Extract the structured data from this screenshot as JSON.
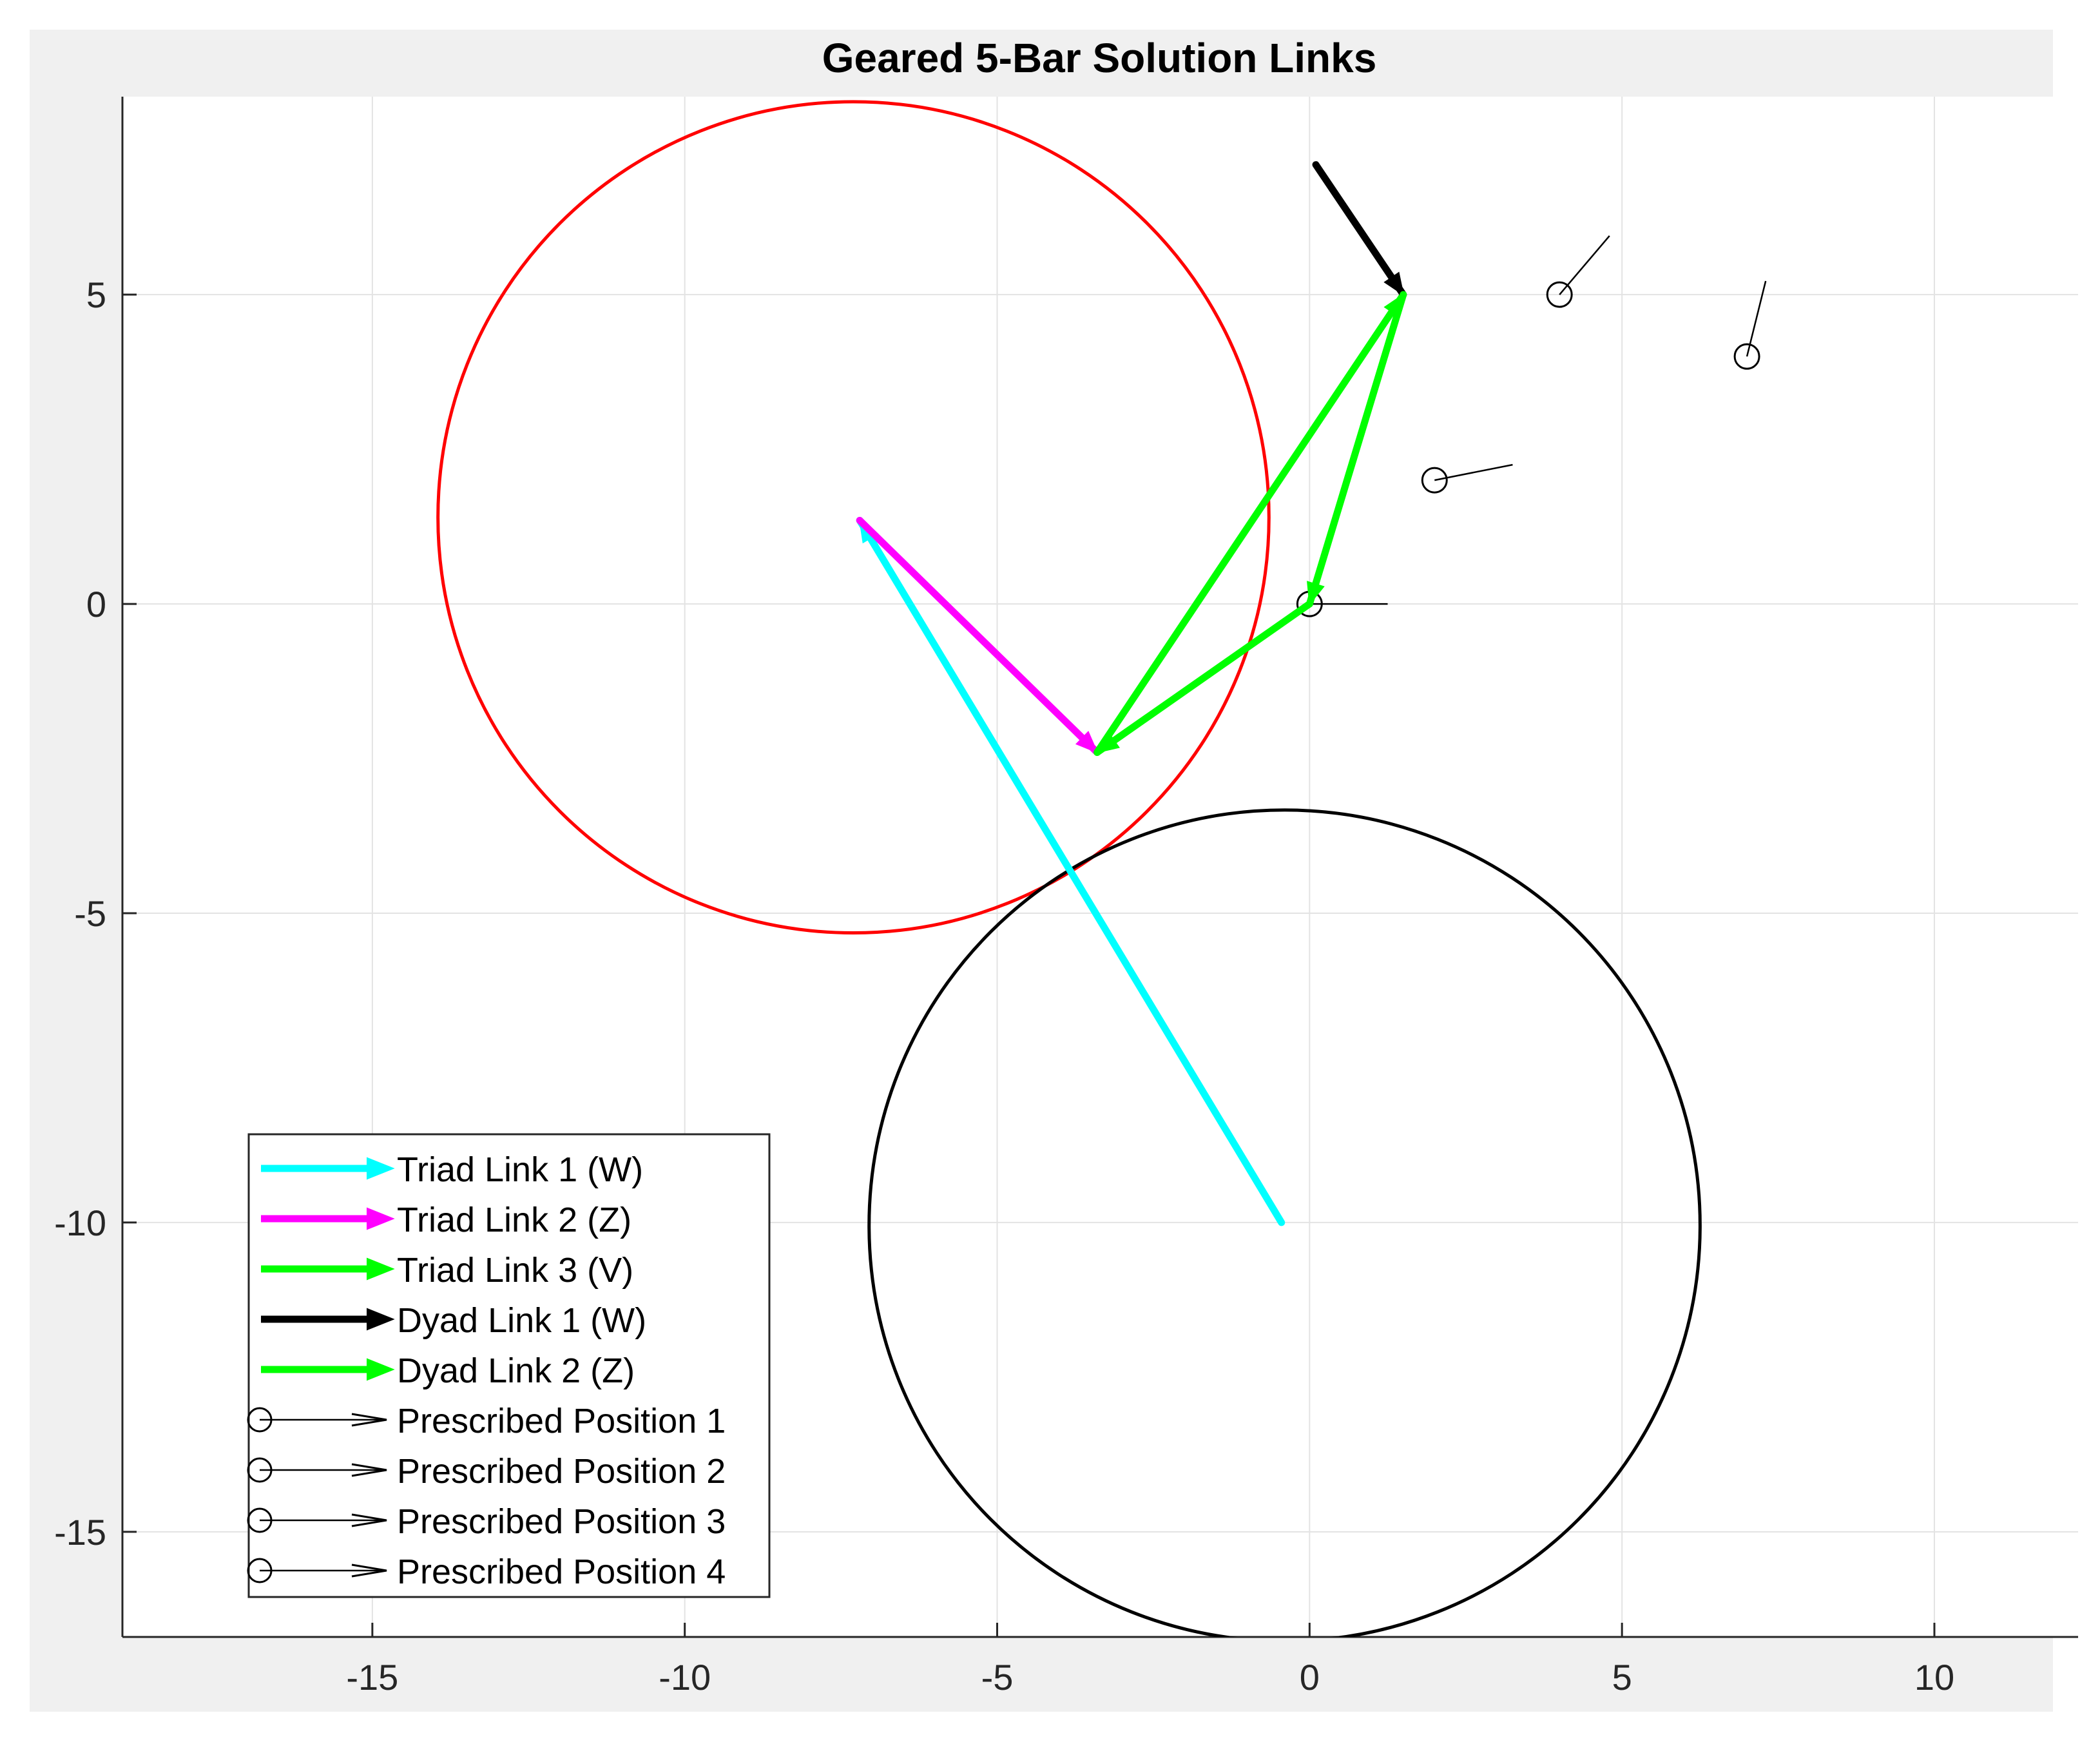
{
  "chart_data": {
    "type": "line",
    "title": "Geared 5-Bar Solution Links",
    "xlabel": "",
    "ylabel": "",
    "xlim": [
      -19,
      12.3
    ],
    "ylim": [
      -16.7,
      8.2
    ],
    "xticks": [
      -15,
      -10,
      -5,
      0,
      5,
      10
    ],
    "yticks": [
      5,
      0,
      -5,
      -10,
      -15
    ],
    "xtick_labels": [
      "-15",
      "-10",
      "-5",
      "0",
      "5",
      "10"
    ],
    "ytick_labels": [
      "5",
      "0",
      "-5",
      "-10",
      "-15"
    ],
    "grid": true,
    "legend_position": "bottom-left",
    "circles": [
      {
        "cx": -7.3,
        "cy": 1.4,
        "r": 6.65,
        "color": "#ff0000"
      },
      {
        "cx": -0.4,
        "cy": -10.05,
        "r": 6.65,
        "color": "#000000"
      }
    ],
    "series": [
      {
        "name": "Triad Link 1 (W)",
        "color": "#00ffff",
        "width": 1,
        "points": [
          [
            -0.45,
            -10.0
          ],
          [
            -7.2,
            1.35
          ]
        ]
      },
      {
        "name": "Triad Link 2 (Z)",
        "color": "#ff00ff",
        "width": 1,
        "points": [
          [
            -7.2,
            1.35
          ],
          [
            -3.4,
            -2.4
          ]
        ]
      },
      {
        "name": "Triad Link 3 (V)",
        "color": "#00ff00",
        "width": 1,
        "points": [
          [
            -3.4,
            -2.4
          ],
          [
            1.5,
            5.0
          ]
        ]
      },
      {
        "name": "Dyad Link 1 (W)",
        "color": "#000000",
        "width": 1,
        "points": [
          [
            0.1,
            7.1
          ],
          [
            1.5,
            5.0
          ]
        ]
      },
      {
        "name": "Dyad Link 2 (Z)",
        "color": "#00ff00",
        "width": 1,
        "points": [
          [
            1.5,
            5.0
          ],
          [
            0.0,
            0.0
          ]
        ]
      },
      {
        "name": "",
        "color": "#00ff00",
        "width": 1,
        "points": [
          [
            0.0,
            0.0
          ],
          [
            -3.4,
            -2.4
          ]
        ]
      }
    ],
    "prescribed_positions": [
      {
        "name": "Prescribed Position 1",
        "x": 0,
        "y": 0,
        "dx": 1.25,
        "dy": 0
      },
      {
        "name": "Prescribed Position 2",
        "x": 2,
        "y": 2,
        "dx": 1.25,
        "dy": 0.25
      },
      {
        "name": "Prescribed Position 3",
        "x": 4,
        "y": 5,
        "dx": 0.8,
        "dy": 0.95
      },
      {
        "name": "Prescribed Position 4",
        "x": 7,
        "y": 4,
        "dx": 0.3,
        "dy": 1.22
      }
    ]
  },
  "legend_entries": [
    {
      "label": "Triad Link 1 (W)",
      "color": "#00ffff",
      "kind": "arrow"
    },
    {
      "label": "Triad Link 2 (Z)",
      "color": "#ff00ff",
      "kind": "arrow"
    },
    {
      "label": "Triad Link 3 (V)",
      "color": "#00ff00",
      "kind": "arrow"
    },
    {
      "label": "Dyad Link 1 (W)",
      "color": "#000000",
      "kind": "arrow"
    },
    {
      "label": "Dyad Link 2 (Z)",
      "color": "#00ff00",
      "kind": "arrow"
    },
    {
      "label": "Prescribed Position 1",
      "color": "#000000",
      "kind": "position"
    },
    {
      "label": "Prescribed Position 2",
      "color": "#000000",
      "kind": "position"
    },
    {
      "label": "Prescribed Position 3",
      "color": "#000000",
      "kind": "position"
    },
    {
      "label": "Prescribed Position 4",
      "color": "#000000",
      "kind": "position"
    }
  ]
}
